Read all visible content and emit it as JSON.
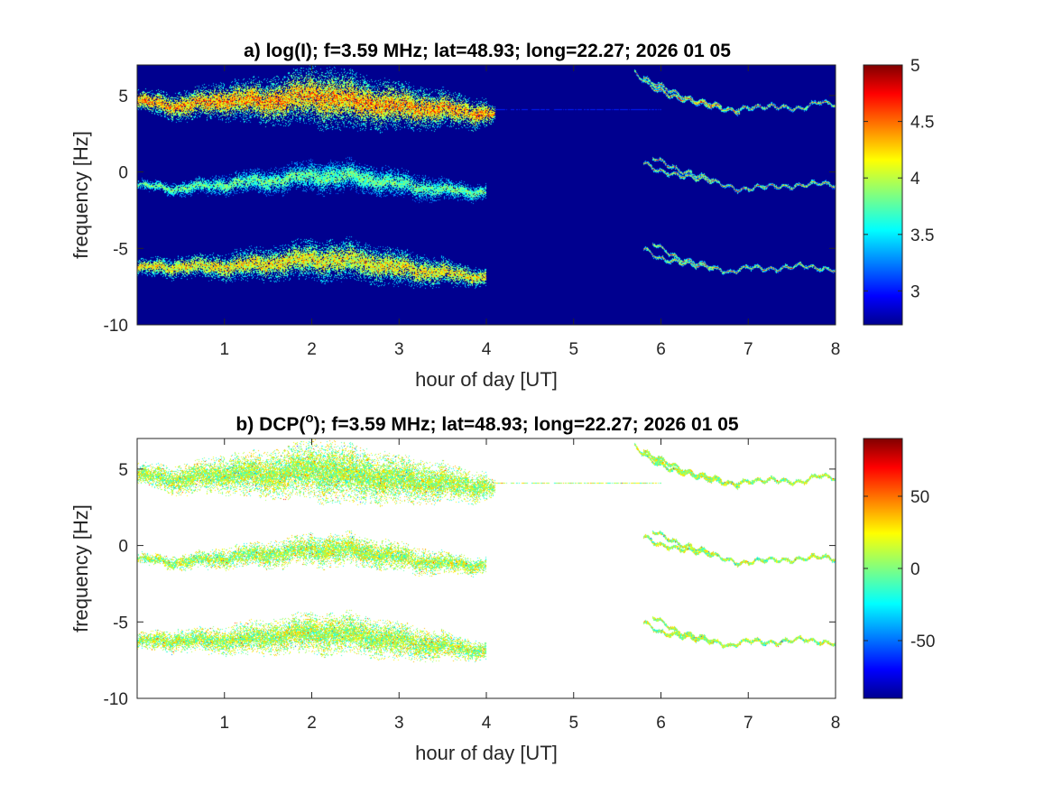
{
  "chart_data": [
    {
      "type": "heatmap",
      "panel": "a",
      "title": "a) log(I); f=3.59 MHz;  lat=48.93; long=22.27; 2026 01 05",
      "xlabel": "hour of day [UT]",
      "ylabel": "frequency [Hz]",
      "xlim": [
        0,
        8
      ],
      "ylim": [
        -10,
        7
      ],
      "xticks": [
        1,
        2,
        3,
        4,
        5,
        6,
        7,
        8
      ],
      "yticks": [
        -10,
        -5,
        0,
        5
      ],
      "colorbar": {
        "colormap": "jet",
        "clim": [
          2.7,
          5
        ],
        "ticks": [
          3,
          3.5,
          4,
          4.5,
          5
        ]
      },
      "background_color": "#00008f",
      "bands": [
        {
          "name": "upper",
          "center": [
            [
              0.0,
              4.6
            ],
            [
              0.5,
              4.3
            ],
            [
              1.0,
              4.7
            ],
            [
              1.5,
              4.6
            ],
            [
              2.0,
              5.0
            ],
            [
              2.5,
              4.6
            ],
            [
              3.0,
              4.3
            ],
            [
              3.5,
              4.1
            ],
            [
              4.0,
              3.8
            ],
            [
              4.1,
              3.8
            ]
          ],
          "halfwidth": [
            [
              0.0,
              0.45
            ],
            [
              1.0,
              0.8
            ],
            [
              2.2,
              1.3
            ],
            [
              3.0,
              1.0
            ],
            [
              4.0,
              0.6
            ],
            [
              4.1,
              0.3
            ]
          ],
          "peak": 4.5
        },
        {
          "name": "middle",
          "center": [
            [
              0.0,
              -0.9
            ],
            [
              0.5,
              -1.1
            ],
            [
              1.0,
              -0.8
            ],
            [
              1.5,
              -0.6
            ],
            [
              2.0,
              -0.3
            ],
            [
              2.5,
              -0.3
            ],
            [
              3.0,
              -0.8
            ],
            [
              3.5,
              -1.2
            ],
            [
              4.0,
              -1.3
            ]
          ],
          "halfwidth": [
            [
              0.0,
              0.2
            ],
            [
              1.0,
              0.45
            ],
            [
              2.2,
              0.7
            ],
            [
              3.0,
              0.6
            ],
            [
              4.0,
              0.35
            ]
          ],
          "peak": 3.9
        },
        {
          "name": "lower",
          "center": [
            [
              0.0,
              -6.3
            ],
            [
              0.5,
              -6.2
            ],
            [
              1.0,
              -6.2
            ],
            [
              1.5,
              -6.0
            ],
            [
              2.0,
              -5.7
            ],
            [
              2.5,
              -5.8
            ],
            [
              3.0,
              -6.3
            ],
            [
              3.5,
              -6.6
            ],
            [
              4.0,
              -6.9
            ]
          ],
          "halfwidth": [
            [
              0.0,
              0.35
            ],
            [
              1.0,
              0.6
            ],
            [
              2.2,
              0.9
            ],
            [
              3.0,
              0.8
            ],
            [
              4.0,
              0.4
            ]
          ],
          "peak": 4.3
        }
      ],
      "traces": [
        [
          [
            5.7,
            6.5
          ],
          [
            5.9,
            5.5
          ],
          [
            6.2,
            4.8
          ],
          [
            6.5,
            4.5
          ],
          [
            6.8,
            4.0
          ],
          [
            7.0,
            4.2
          ],
          [
            7.3,
            4.3
          ],
          [
            7.6,
            4.1
          ],
          [
            7.8,
            4.6
          ],
          [
            8.0,
            4.4
          ]
        ],
        [
          [
            5.8,
            6.2
          ],
          [
            6.1,
            5.0
          ],
          [
            6.5,
            4.4
          ],
          [
            6.9,
            3.9
          ]
        ],
        [
          [
            5.9,
            5.9
          ],
          [
            6.3,
            4.8
          ],
          [
            6.7,
            4.3
          ]
        ],
        [
          [
            5.8,
            0.6
          ],
          [
            6.0,
            0.0
          ],
          [
            6.3,
            -0.3
          ],
          [
            6.6,
            -0.6
          ],
          [
            6.9,
            -1.2
          ],
          [
            7.2,
            -0.9
          ],
          [
            7.5,
            -1.0
          ],
          [
            7.8,
            -0.7
          ],
          [
            8.0,
            -0.9
          ]
        ],
        [
          [
            5.9,
            1.0
          ],
          [
            6.2,
            0.1
          ],
          [
            6.6,
            -0.5
          ]
        ],
        [
          [
            5.8,
            -5.0
          ],
          [
            6.0,
            -5.7
          ],
          [
            6.3,
            -6.0
          ],
          [
            6.6,
            -6.3
          ],
          [
            6.8,
            -6.6
          ],
          [
            7.0,
            -6.2
          ],
          [
            7.3,
            -6.4
          ],
          [
            7.6,
            -6.1
          ],
          [
            7.9,
            -6.4
          ],
          [
            8.0,
            -6.4
          ]
        ],
        [
          [
            5.9,
            -4.6
          ],
          [
            6.2,
            -5.7
          ],
          [
            6.6,
            -6.2
          ]
        ]
      ],
      "thin_line": {
        "y": 4.1,
        "x_range": [
          4.1,
          6.0
        ]
      }
    },
    {
      "type": "heatmap",
      "panel": "b",
      "title_prefix": "b) DCP(",
      "title_superscript": "o",
      "title_suffix": "); f=3.59 MHz;  lat=48.93; long=22.27; 2026 01 05",
      "xlabel": "hour of day [UT]",
      "ylabel": "frequency [Hz]",
      "xlim": [
        0,
        8
      ],
      "ylim": [
        -10,
        7
      ],
      "xticks": [
        1,
        2,
        3,
        4,
        5,
        6,
        7,
        8
      ],
      "yticks": [
        -10,
        -5,
        0,
        5
      ],
      "colorbar": {
        "colormap": "jet",
        "clim": [
          -90,
          90
        ],
        "ticks": [
          -50,
          0,
          50
        ]
      },
      "background_color": "#ffffff",
      "dominant_value": 8
    }
  ]
}
